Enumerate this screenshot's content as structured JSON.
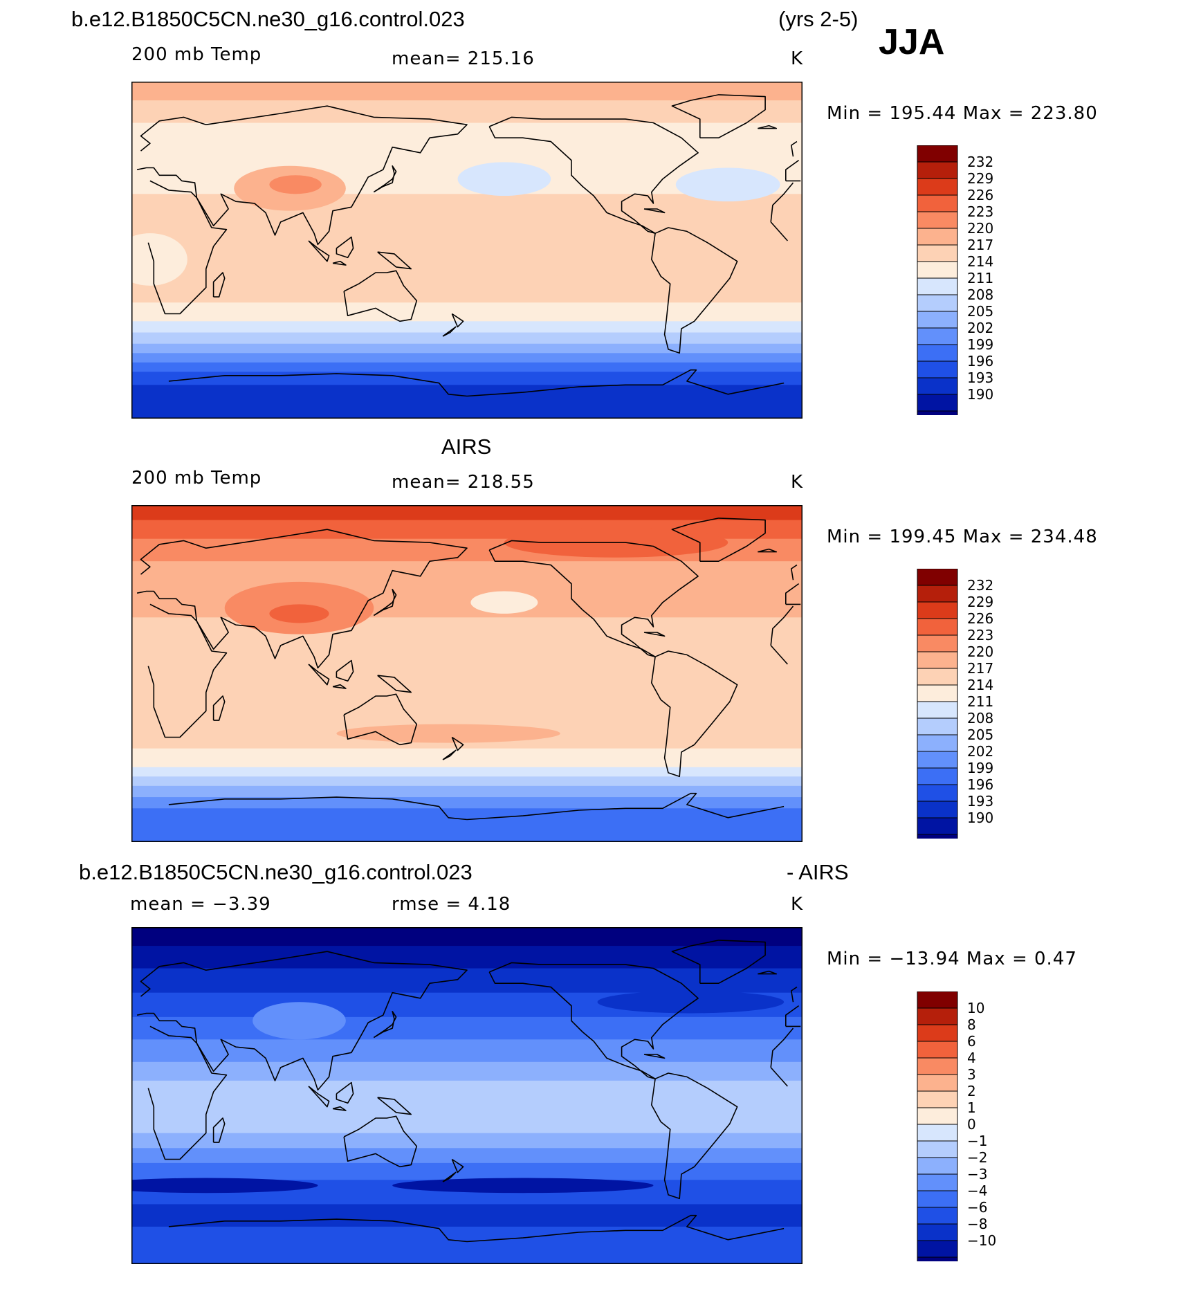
{
  "header": {
    "case_name": "b.e12.B1850C5CN.ne30_g16.control.023",
    "years": "(yrs 2-5)",
    "season": "JJA"
  },
  "panels": [
    {
      "id": "model",
      "title": "",
      "variable": "200 mb Temp",
      "stat": "mean=  215.16",
      "units": "K",
      "range": "Min  =  195.44  Max  =  223.80",
      "bands_from_north": [
        {
          "lat": 90,
          "value": 221.5
        },
        {
          "lat": 80,
          "value": 219.5
        },
        {
          "lat": 68,
          "value": 216
        },
        {
          "lat": 55,
          "value": 215.5
        },
        {
          "lat": 42,
          "value": 215.5
        },
        {
          "lat": 30,
          "value": 218.5
        },
        {
          "lat": 15,
          "value": 218.5
        },
        {
          "lat": 0,
          "value": 218.5
        },
        {
          "lat": -15,
          "value": 218.5
        },
        {
          "lat": -28,
          "value": 215.5
        },
        {
          "lat": -38,
          "value": 212.5
        },
        {
          "lat": -44,
          "value": 209.5
        },
        {
          "lat": -50,
          "value": 206.5
        },
        {
          "lat": -55,
          "value": 203.5
        },
        {
          "lat": -60,
          "value": 200.5
        },
        {
          "lat": -65,
          "value": 197.5
        },
        {
          "lat": -72,
          "value": 194.5
        },
        {
          "lat": -90,
          "value": 194.5
        }
      ],
      "features": [
        {
          "lon": 85,
          "lat": 33,
          "rx": 30,
          "ry": 12,
          "value": 222
        },
        {
          "lon": 88,
          "lat": 35,
          "rx": 14,
          "ry": 5,
          "value": 224
        },
        {
          "lon": -160,
          "lat": 38,
          "rx": 25,
          "ry": 9,
          "value": 212
        },
        {
          "lon": -40,
          "lat": 35,
          "rx": 28,
          "ry": 9,
          "value": 213
        },
        {
          "lon": -115,
          "lat": -8,
          "rx": 50,
          "ry": 6,
          "value": 217
        },
        {
          "lon": 10,
          "lat": -5,
          "rx": 20,
          "ry": 14,
          "value": 216
        }
      ],
      "colorbar_type": "absolute"
    },
    {
      "id": "obs",
      "title": "AIRS",
      "variable": "200 mb Temp",
      "stat": "mean=  218.55",
      "units": "K",
      "range": "Min  =  199.45  Max  =  234.48",
      "bands_from_north": [
        {
          "lat": 90,
          "value": 230.5
        },
        {
          "lat": 82,
          "value": 227.5
        },
        {
          "lat": 72,
          "value": 224.5
        },
        {
          "lat": 60,
          "value": 221.5
        },
        {
          "lat": 45,
          "value": 221.5
        },
        {
          "lat": 30,
          "value": 218.5
        },
        {
          "lat": 15,
          "value": 218.5
        },
        {
          "lat": 0,
          "value": 218.5
        },
        {
          "lat": -20,
          "value": 218.5
        },
        {
          "lat": -32,
          "value": 218.5
        },
        {
          "lat": -40,
          "value": 215.5
        },
        {
          "lat": -50,
          "value": 212.5
        },
        {
          "lat": -55,
          "value": 209.5
        },
        {
          "lat": -60,
          "value": 206.5
        },
        {
          "lat": -66,
          "value": 203.5
        },
        {
          "lat": -72,
          "value": 200.5
        },
        {
          "lat": -90,
          "value": 200.5
        }
      ],
      "features": [
        {
          "lon": 90,
          "lat": 35,
          "rx": 40,
          "ry": 14,
          "value": 225
        },
        {
          "lon": 90,
          "lat": 32,
          "rx": 16,
          "ry": 5,
          "value": 228
        },
        {
          "lon": 170,
          "lat": -32,
          "rx": 60,
          "ry": 5,
          "value": 221
        },
        {
          "lon": -160,
          "lat": 38,
          "rx": 18,
          "ry": 6,
          "value": 215
        },
        {
          "lon": -100,
          "lat": 70,
          "rx": 60,
          "ry": 8,
          "value": 228
        }
      ],
      "colorbar_type": "absolute"
    },
    {
      "id": "diff",
      "title": "b.e12.B1850C5CN.ne30_g16.control.023",
      "title_suffix": "- AIRS",
      "variable": "mean =     −3.39",
      "stat": "rmse =     4.18",
      "units": "K",
      "range": "Min  =  −13.94  Max  =     0.47",
      "bands_from_north": [
        {
          "lat": 90,
          "value": -12
        },
        {
          "lat": 80,
          "value": -9
        },
        {
          "lat": 68,
          "value": -7
        },
        {
          "lat": 55,
          "value": -5
        },
        {
          "lat": 42,
          "value": -3.5
        },
        {
          "lat": 30,
          "value": -2.5
        },
        {
          "lat": 18,
          "value": -1.5
        },
        {
          "lat": 8,
          "value": -0.5
        },
        {
          "lat": -10,
          "value": -0.5
        },
        {
          "lat": -20,
          "value": -1.5
        },
        {
          "lat": -28,
          "value": -2.5
        },
        {
          "lat": -36,
          "value": -3.5
        },
        {
          "lat": -45,
          "value": -5
        },
        {
          "lat": -58,
          "value": -7
        },
        {
          "lat": -70,
          "value": -5
        },
        {
          "lat": -90,
          "value": -5
        }
      ],
      "features": [
        {
          "lon": 90,
          "lat": 40,
          "rx": 25,
          "ry": 10,
          "value": -2.5
        },
        {
          "lon": -60,
          "lat": 50,
          "rx": 50,
          "ry": 6,
          "value": -7
        },
        {
          "lon": -150,
          "lat": -48,
          "rx": 70,
          "ry": 4,
          "value": -9
        },
        {
          "lon": 40,
          "lat": -48,
          "rx": 60,
          "ry": 4,
          "value": -9
        }
      ],
      "colorbar_type": "difference"
    }
  ],
  "colorbar_absolute": {
    "labels": [
      "232",
      "229",
      "226",
      "223",
      "220",
      "217",
      "214",
      "211",
      "208",
      "205",
      "202",
      "199",
      "196",
      "193",
      "190"
    ],
    "levels": [
      190,
      193,
      196,
      199,
      202,
      205,
      208,
      211,
      214,
      217,
      220,
      223,
      226,
      229,
      232
    ],
    "colors": [
      "#00007f",
      "#0014a3",
      "#0a32c9",
      "#1f50e6",
      "#3c6ff5",
      "#6290fb",
      "#8cb0fd",
      "#b4cdfd",
      "#d7e6fd",
      "#fdeddc",
      "#fdd2b5",
      "#fcb28e",
      "#f98a63",
      "#f1623c",
      "#dc3b1a",
      "#b51f0b",
      "#800000"
    ]
  },
  "colorbar_difference": {
    "labels": [
      "10",
      "8",
      "6",
      "4",
      "3",
      "2",
      "1",
      "0",
      "−1",
      "−2",
      "−3",
      "−4",
      "−6",
      "−8",
      "−10"
    ],
    "levels": [
      -10,
      -8,
      -6,
      -4,
      -3,
      -2,
      -1,
      0,
      1,
      2,
      3,
      4,
      6,
      8,
      10
    ],
    "colors": [
      "#00007f",
      "#0014a3",
      "#0a32c9",
      "#1f50e6",
      "#3c6ff5",
      "#6290fb",
      "#8cb0fd",
      "#b4cdfd",
      "#d7e6fd",
      "#fdeddc",
      "#fdd2b5",
      "#fcb28e",
      "#f98a63",
      "#f1623c",
      "#dc3b1a",
      "#b51f0b",
      "#800000"
    ]
  },
  "map": {
    "projection": "cylindrical-equidistant",
    "central_longitude": 180
  }
}
